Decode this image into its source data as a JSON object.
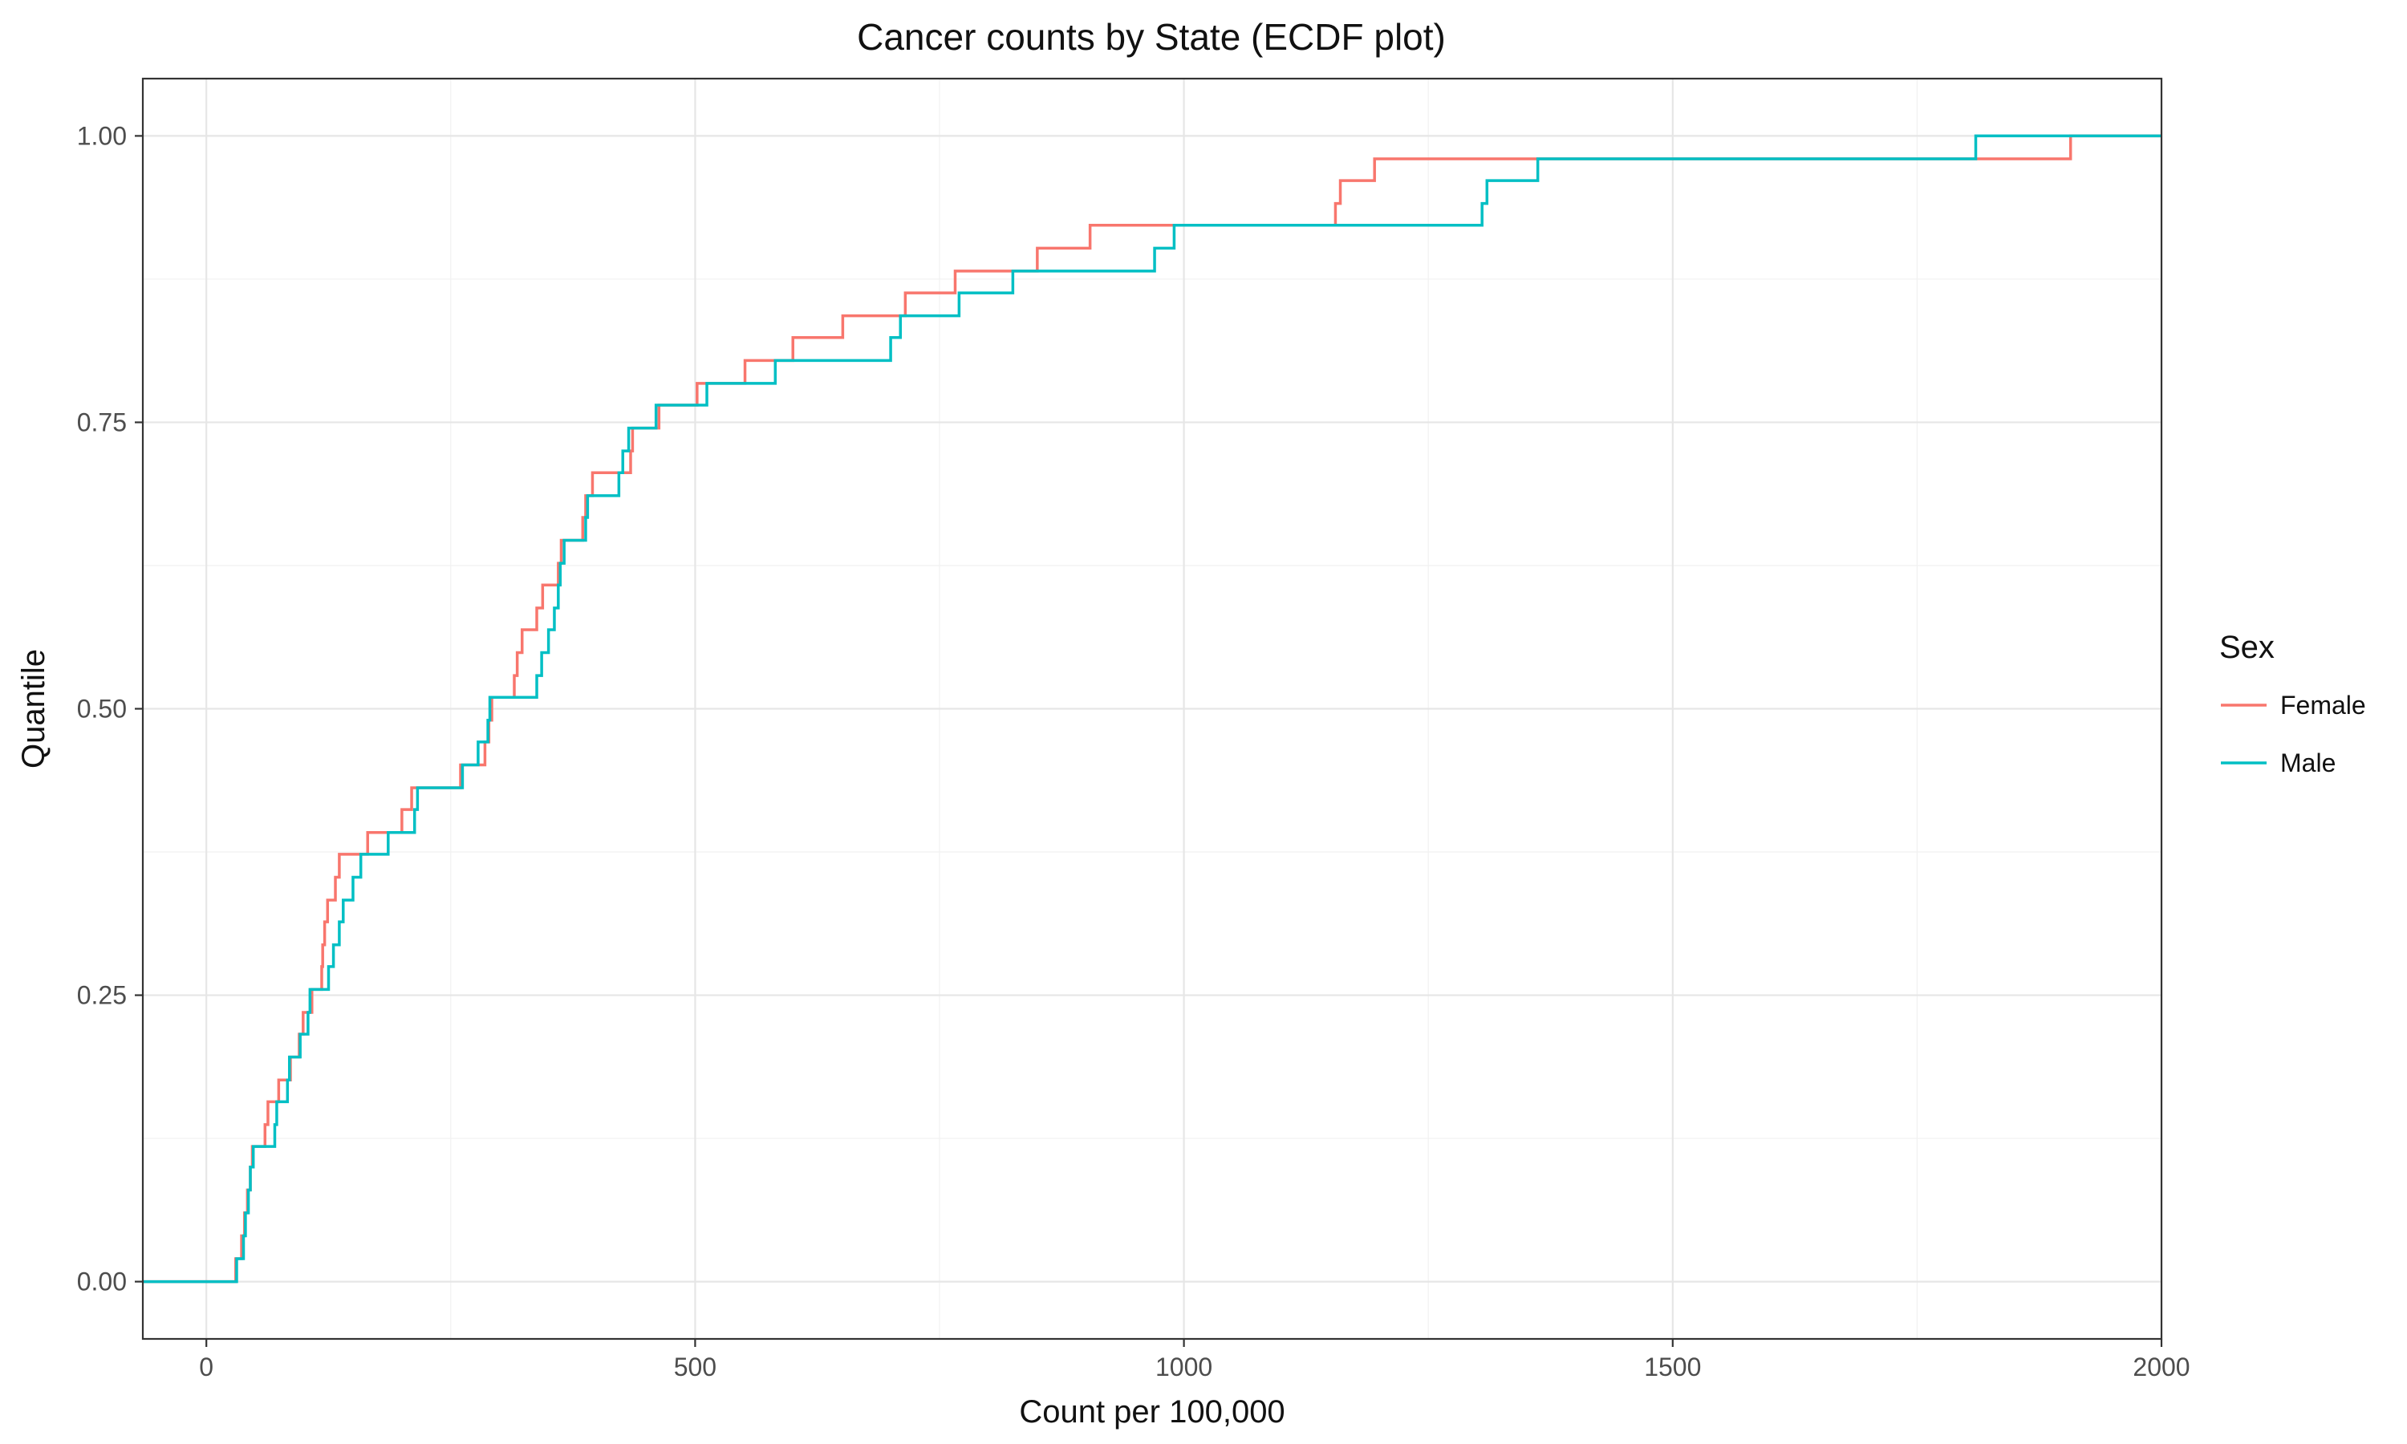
{
  "chart_data": {
    "type": "line",
    "subtype": "ecdf-step",
    "title": "Cancer counts by State (ECDF plot)",
    "xlabel": "Count per 100,000",
    "ylabel": "Quantile",
    "xlim": [
      -65,
      2000
    ],
    "ylim": [
      -0.05,
      1.05
    ],
    "x_ticks": [
      0,
      500,
      1000,
      1500,
      2000
    ],
    "x_tick_labels": [
      "0",
      "500",
      "1000",
      "1500",
      "2000"
    ],
    "y_ticks": [
      0,
      0.25,
      0.5,
      0.75,
      1
    ],
    "y_tick_labels": [
      "0.00",
      "0.25",
      "0.50",
      "0.75",
      "1.00"
    ],
    "grid": true,
    "legend": {
      "title": "Sex",
      "position": "right"
    },
    "series": [
      {
        "name": "Female",
        "color": "#F8766D",
        "points": [
          [
            -65,
            0.0
          ],
          [
            30,
            0.0
          ],
          [
            30,
            0.02
          ],
          [
            36,
            0.02
          ],
          [
            36,
            0.04
          ],
          [
            39,
            0.04
          ],
          [
            39,
            0.06
          ],
          [
            42,
            0.06
          ],
          [
            42,
            0.08
          ],
          [
            45,
            0.08
          ],
          [
            45,
            0.1
          ],
          [
            47,
            0.1
          ],
          [
            47,
            0.118
          ],
          [
            60,
            0.118
          ],
          [
            60,
            0.137
          ],
          [
            63,
            0.137
          ],
          [
            63,
            0.157
          ],
          [
            74,
            0.157
          ],
          [
            74,
            0.176
          ],
          [
            86,
            0.176
          ],
          [
            86,
            0.196
          ],
          [
            95,
            0.196
          ],
          [
            95,
            0.216
          ],
          [
            99,
            0.216
          ],
          [
            99,
            0.235
          ],
          [
            108,
            0.235
          ],
          [
            108,
            0.255
          ],
          [
            118,
            0.255
          ],
          [
            118,
            0.275
          ],
          [
            119,
            0.275
          ],
          [
            119,
            0.294
          ],
          [
            121,
            0.294
          ],
          [
            121,
            0.314
          ],
          [
            124,
            0.314
          ],
          [
            124,
            0.333
          ],
          [
            132,
            0.333
          ],
          [
            132,
            0.353
          ],
          [
            136,
            0.353
          ],
          [
            136,
            0.373
          ],
          [
            165,
            0.373
          ],
          [
            165,
            0.392
          ],
          [
            200,
            0.392
          ],
          [
            200,
            0.412
          ],
          [
            210,
            0.412
          ],
          [
            210,
            0.431
          ],
          [
            260,
            0.431
          ],
          [
            260,
            0.451
          ],
          [
            285,
            0.451
          ],
          [
            285,
            0.471
          ],
          [
            289,
            0.471
          ],
          [
            289,
            0.49
          ],
          [
            292,
            0.49
          ],
          [
            292,
            0.51
          ],
          [
            315,
            0.51
          ],
          [
            315,
            0.529
          ],
          [
            318,
            0.529
          ],
          [
            318,
            0.549
          ],
          [
            323,
            0.549
          ],
          [
            323,
            0.569
          ],
          [
            338,
            0.569
          ],
          [
            338,
            0.588
          ],
          [
            344,
            0.588
          ],
          [
            344,
            0.608
          ],
          [
            360,
            0.608
          ],
          [
            360,
            0.627
          ],
          [
            363,
            0.627
          ],
          [
            363,
            0.647
          ],
          [
            385,
            0.647
          ],
          [
            385,
            0.667
          ],
          [
            388,
            0.667
          ],
          [
            388,
            0.686
          ],
          [
            395,
            0.686
          ],
          [
            395,
            0.706
          ],
          [
            434,
            0.706
          ],
          [
            434,
            0.725
          ],
          [
            436,
            0.725
          ],
          [
            436,
            0.745
          ],
          [
            463,
            0.745
          ],
          [
            463,
            0.765
          ],
          [
            502,
            0.765
          ],
          [
            502,
            0.784
          ],
          [
            551,
            0.784
          ],
          [
            551,
            0.804
          ],
          [
            600,
            0.804
          ],
          [
            600,
            0.824
          ],
          [
            651,
            0.824
          ],
          [
            651,
            0.843
          ],
          [
            715,
            0.843
          ],
          [
            715,
            0.863
          ],
          [
            766,
            0.863
          ],
          [
            766,
            0.882
          ],
          [
            850,
            0.882
          ],
          [
            850,
            0.902
          ],
          [
            904,
            0.902
          ],
          [
            904,
            0.922
          ],
          [
            1155,
            0.922
          ],
          [
            1155,
            0.941
          ],
          [
            1160,
            0.941
          ],
          [
            1160,
            0.961
          ],
          [
            1195,
            0.961
          ],
          [
            1195,
            0.98
          ],
          [
            1907,
            0.98
          ],
          [
            1907,
            1.0
          ],
          [
            2000,
            1.0
          ]
        ]
      },
      {
        "name": "Male",
        "color": "#00BFC4",
        "points": [
          [
            -65,
            0.0
          ],
          [
            31,
            0.0
          ],
          [
            31,
            0.02
          ],
          [
            38,
            0.02
          ],
          [
            38,
            0.04
          ],
          [
            40,
            0.04
          ],
          [
            40,
            0.06
          ],
          [
            43,
            0.06
          ],
          [
            43,
            0.08
          ],
          [
            45,
            0.08
          ],
          [
            45,
            0.1
          ],
          [
            48,
            0.1
          ],
          [
            48,
            0.118
          ],
          [
            70,
            0.118
          ],
          [
            70,
            0.137
          ],
          [
            72,
            0.137
          ],
          [
            72,
            0.157
          ],
          [
            83,
            0.157
          ],
          [
            83,
            0.176
          ],
          [
            85,
            0.176
          ],
          [
            85,
            0.196
          ],
          [
            96,
            0.196
          ],
          [
            96,
            0.216
          ],
          [
            104,
            0.216
          ],
          [
            104,
            0.235
          ],
          [
            106,
            0.235
          ],
          [
            106,
            0.255
          ],
          [
            125,
            0.255
          ],
          [
            125,
            0.275
          ],
          [
            130,
            0.275
          ],
          [
            130,
            0.294
          ],
          [
            136,
            0.294
          ],
          [
            136,
            0.314
          ],
          [
            140,
            0.314
          ],
          [
            140,
            0.333
          ],
          [
            150,
            0.333
          ],
          [
            150,
            0.353
          ],
          [
            158,
            0.353
          ],
          [
            158,
            0.373
          ],
          [
            186,
            0.373
          ],
          [
            186,
            0.392
          ],
          [
            213,
            0.392
          ],
          [
            213,
            0.412
          ],
          [
            216,
            0.412
          ],
          [
            216,
            0.431
          ],
          [
            262,
            0.431
          ],
          [
            262,
            0.451
          ],
          [
            278,
            0.451
          ],
          [
            278,
            0.471
          ],
          [
            288,
            0.471
          ],
          [
            288,
            0.49
          ],
          [
            290,
            0.49
          ],
          [
            290,
            0.51
          ],
          [
            338,
            0.51
          ],
          [
            338,
            0.529
          ],
          [
            343,
            0.529
          ],
          [
            343,
            0.549
          ],
          [
            350,
            0.549
          ],
          [
            350,
            0.569
          ],
          [
            356,
            0.569
          ],
          [
            356,
            0.588
          ],
          [
            360,
            0.588
          ],
          [
            360,
            0.608
          ],
          [
            362,
            0.608
          ],
          [
            362,
            0.627
          ],
          [
            366,
            0.627
          ],
          [
            366,
            0.647
          ],
          [
            388,
            0.647
          ],
          [
            388,
            0.667
          ],
          [
            390,
            0.667
          ],
          [
            390,
            0.686
          ],
          [
            422,
            0.686
          ],
          [
            422,
            0.706
          ],
          [
            426,
            0.706
          ],
          [
            426,
            0.725
          ],
          [
            432,
            0.725
          ],
          [
            432,
            0.745
          ],
          [
            460,
            0.745
          ],
          [
            460,
            0.765
          ],
          [
            512,
            0.765
          ],
          [
            512,
            0.784
          ],
          [
            582,
            0.784
          ],
          [
            582,
            0.804
          ],
          [
            700,
            0.804
          ],
          [
            700,
            0.824
          ],
          [
            710,
            0.824
          ],
          [
            710,
            0.843
          ],
          [
            770,
            0.843
          ],
          [
            770,
            0.863
          ],
          [
            825,
            0.863
          ],
          [
            825,
            0.882
          ],
          [
            970,
            0.882
          ],
          [
            970,
            0.902
          ],
          [
            990,
            0.902
          ],
          [
            990,
            0.922
          ],
          [
            1305,
            0.922
          ],
          [
            1305,
            0.941
          ],
          [
            1310,
            0.941
          ],
          [
            1310,
            0.961
          ],
          [
            1362,
            0.961
          ],
          [
            1362,
            0.98
          ],
          [
            1810,
            0.98
          ],
          [
            1810,
            1.0
          ],
          [
            2000,
            1.0
          ]
        ]
      }
    ]
  }
}
